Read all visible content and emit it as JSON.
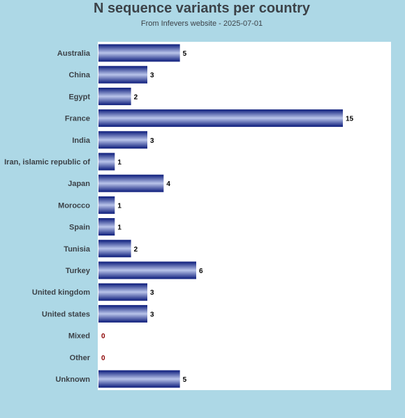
{
  "chart_data": {
    "type": "bar",
    "orientation": "horizontal",
    "title": "N sequence variants per country",
    "subtitle": "From Infevers website - 2025-07-01",
    "categories": [
      "Australia",
      "China",
      "Egypt",
      "France",
      "India",
      "Iran, islamic republic of",
      "Japan",
      "Morocco",
      "Spain",
      "Tunisia",
      "Turkey",
      "United kingdom",
      "United states",
      "Mixed",
      "Other",
      "Unknown"
    ],
    "values": [
      5,
      3,
      2,
      15,
      3,
      1,
      4,
      1,
      1,
      2,
      6,
      3,
      3,
      0,
      0,
      5
    ],
    "xlim": [
      0,
      18
    ],
    "grid": false,
    "colors": {
      "background": "#add8e6",
      "plot_background": "#ffffff",
      "bar_dark": "#0a1a7a",
      "bar_light": "#b9c4ea",
      "value_text": "#000000",
      "zero_value_text": "#8b0000",
      "label_text": "#3c4248"
    }
  }
}
